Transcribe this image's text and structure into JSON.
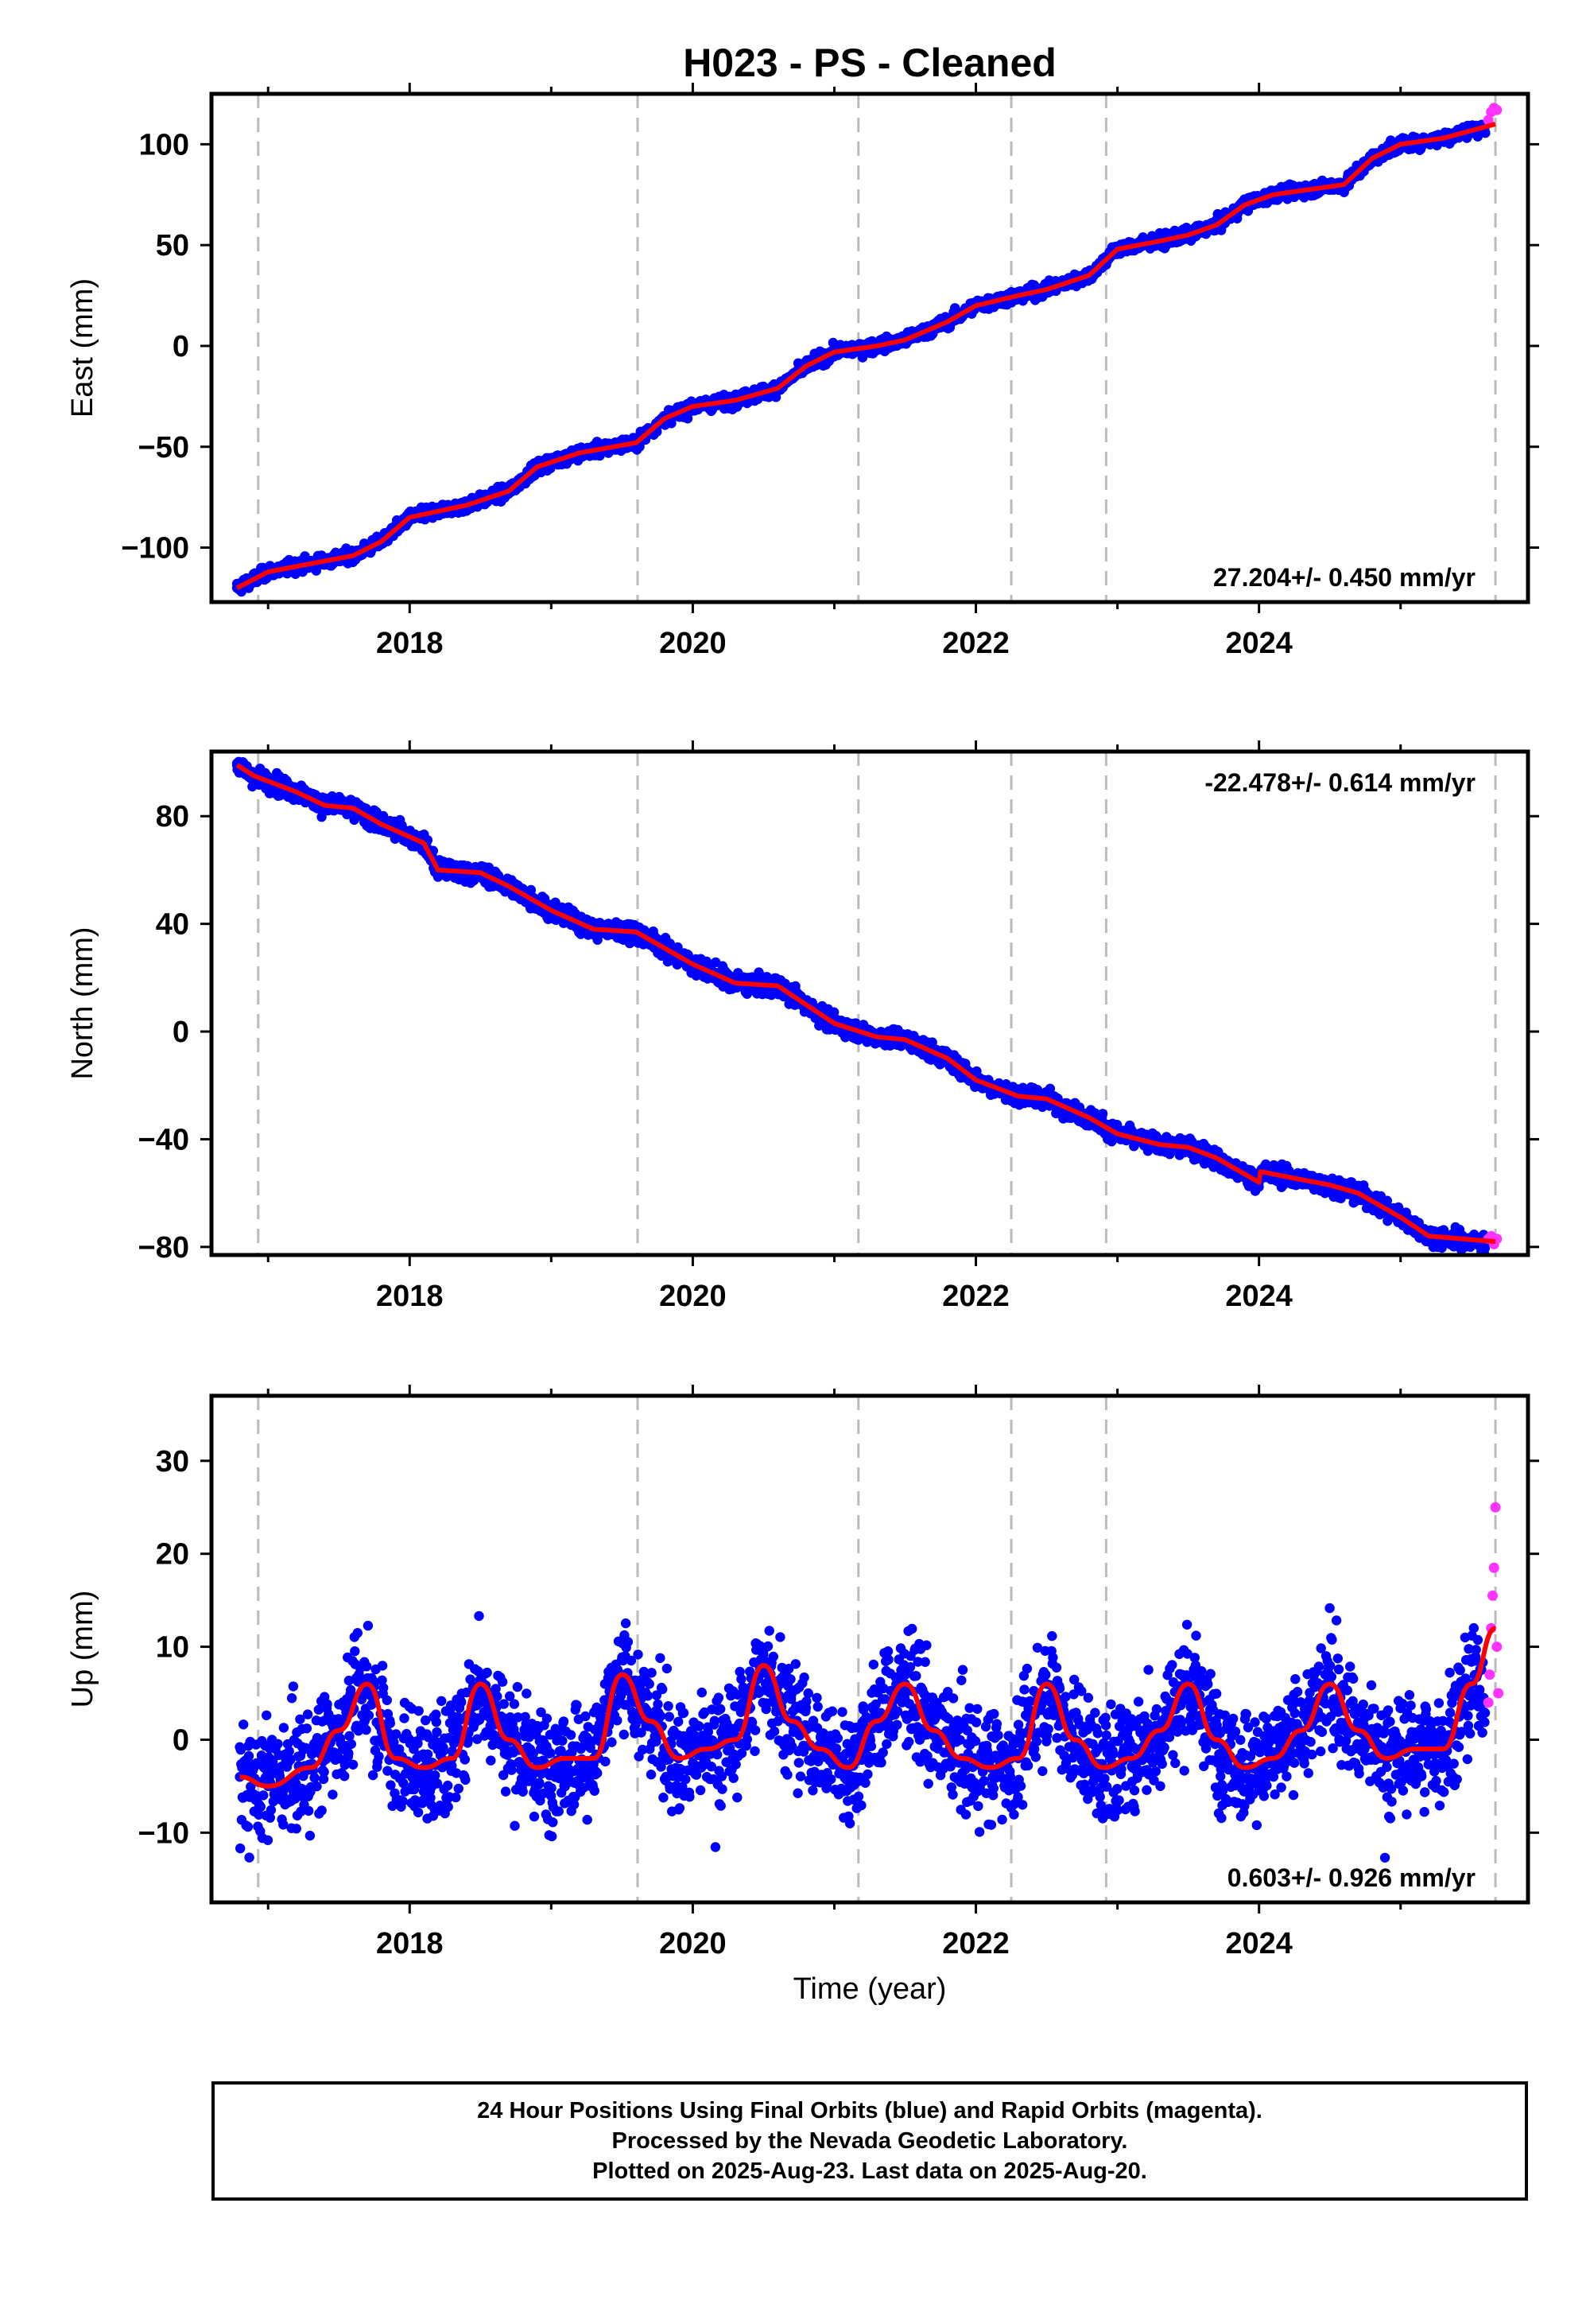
{
  "title": "H023  - PS - Cleaned",
  "x_axis_label": "Time (year)",
  "caption": [
    "24 Hour Positions Using Final Orbits (blue) and Rapid Orbits (magenta).",
    "Processed by the Nevada Geodetic Laboratory.",
    "Plotted on 2025-Aug-23. Last data on 2025-Aug-20."
  ],
  "colors": {
    "final_orbits": "#0000ff",
    "rapid_orbits": "#ff33ff",
    "model_fit": "#ff0000",
    "event_lines": "#bbbbbb"
  },
  "chart_data": [
    {
      "type": "scatter",
      "component": "east",
      "ylabel": "East (mm)",
      "xlim": [
        2016.6,
        2025.9
      ],
      "ylim": [
        -127,
        125
      ],
      "xticks": [
        2018,
        2020,
        2022,
        2024
      ],
      "yticks": [
        -100,
        -50,
        0,
        50,
        100
      ],
      "rate_label": "27.204+/- 0.450 mm/yr",
      "rate_position": "bottom-right",
      "event_lines_x": [
        2016.93,
        2019.61,
        2021.17,
        2022.25,
        2022.92,
        2025.67
      ],
      "series": [
        {
          "name": "Final Orbits (blue)",
          "x": [
            2016.78,
            2017.0,
            2017.3,
            2017.6,
            2017.8,
            2018.0,
            2018.4,
            2018.7,
            2018.9,
            2019.2,
            2019.6,
            2019.8,
            2020.0,
            2020.3,
            2020.6,
            2020.8,
            2021.0,
            2021.3,
            2021.5,
            2021.8,
            2022.0,
            2022.3,
            2022.5,
            2022.8,
            2023.0,
            2023.3,
            2023.5,
            2023.7,
            2023.9,
            2024.1,
            2024.3,
            2024.6,
            2024.8,
            2025.0,
            2025.3,
            2025.55
          ],
          "y": [
            -120,
            -112,
            -108,
            -104,
            -97,
            -85,
            -79,
            -72,
            -60,
            -53,
            -48,
            -36,
            -30,
            -27,
            -21,
            -10,
            -3,
            0,
            3,
            12,
            20,
            25,
            28,
            35,
            48,
            52,
            55,
            60,
            70,
            75,
            77,
            80,
            93,
            100,
            103,
            108
          ]
        },
        {
          "name": "Rapid Orbits (magenta)",
          "x": [
            2025.62,
            2025.64,
            2025.66,
            2025.68
          ],
          "y": [
            112,
            116,
            118,
            117
          ]
        },
        {
          "name": "Model fit",
          "type": "line",
          "x": [
            2016.78,
            2017.0,
            2017.3,
            2017.6,
            2017.8,
            2018.0,
            2018.4,
            2018.7,
            2018.9,
            2019.2,
            2019.6,
            2019.8,
            2020.0,
            2020.3,
            2020.6,
            2020.8,
            2021.0,
            2021.3,
            2021.5,
            2021.8,
            2022.0,
            2022.3,
            2022.5,
            2022.8,
            2023.0,
            2023.3,
            2023.5,
            2023.7,
            2023.9,
            2024.1,
            2024.3,
            2024.6,
            2024.8,
            2025.0,
            2025.3,
            2025.67
          ],
          "y": [
            -120,
            -112,
            -108,
            -104,
            -97,
            -85,
            -79,
            -72,
            -60,
            -53,
            -48,
            -36,
            -30,
            -27,
            -21,
            -10,
            -3,
            0,
            3,
            12,
            20,
            25,
            28,
            35,
            48,
            52,
            55,
            60,
            70,
            75,
            77,
            80,
            93,
            100,
            103,
            110
          ]
        }
      ]
    },
    {
      "type": "scatter",
      "component": "north",
      "ylabel": "North (mm)",
      "xlim": [
        2016.6,
        2025.9
      ],
      "ylim": [
        -83,
        104
      ],
      "xticks": [
        2018,
        2020,
        2022,
        2024
      ],
      "yticks": [
        -80,
        -40,
        0,
        40,
        80
      ],
      "rate_label": "-22.478+/- 0.614 mm/yr",
      "rate_position": "top-right",
      "event_lines_x": [
        2016.93,
        2019.61,
        2021.17,
        2022.25,
        2022.92,
        2025.67
      ],
      "series": [
        {
          "name": "Final Orbits (blue)",
          "x": [
            2016.78,
            2016.9,
            2017.2,
            2017.4,
            2017.6,
            2017.8,
            2018.1,
            2018.2,
            2018.5,
            2018.7,
            2019.0,
            2019.3,
            2019.6,
            2019.8,
            2020.0,
            2020.3,
            2020.6,
            2020.8,
            2021.0,
            2021.3,
            2021.5,
            2021.8,
            2022.0,
            2022.3,
            2022.5,
            2022.8,
            2023.0,
            2023.3,
            2023.5,
            2023.7,
            2024.0,
            2024.01,
            2024.3,
            2024.5,
            2024.7,
            2025.0,
            2025.2,
            2025.5
          ],
          "y": [
            99,
            95,
            89,
            84,
            83,
            77,
            70,
            60,
            59,
            54,
            45,
            38,
            37,
            31,
            25,
            18,
            17,
            10,
            3,
            -2,
            -3,
            -10,
            -18,
            -24,
            -25,
            -32,
            -38,
            -42,
            -43,
            -47,
            -56,
            -52,
            -55,
            -57,
            -60,
            -69,
            -76,
            -78
          ]
        },
        {
          "name": "Rapid Orbits (magenta)",
          "x": [
            2025.62,
            2025.64,
            2025.66,
            2025.68
          ],
          "y": [
            -77,
            -76,
            -79,
            -77
          ]
        },
        {
          "name": "Model fit",
          "type": "line",
          "x": [
            2016.78,
            2016.9,
            2017.2,
            2017.4,
            2017.6,
            2017.8,
            2018.1,
            2018.2,
            2018.5,
            2018.7,
            2019.0,
            2019.3,
            2019.6,
            2019.8,
            2020.0,
            2020.3,
            2020.6,
            2020.8,
            2021.0,
            2021.3,
            2021.5,
            2021.8,
            2022.0,
            2022.3,
            2022.5,
            2022.8,
            2023.0,
            2023.3,
            2023.5,
            2023.7,
            2024.0,
            2024.01,
            2024.3,
            2024.5,
            2024.7,
            2025.0,
            2025.2,
            2025.67
          ],
          "y": [
            99,
            95,
            89,
            84,
            83,
            77,
            70,
            60,
            59,
            54,
            45,
            38,
            37,
            31,
            25,
            18,
            17,
            10,
            3,
            -2,
            -3,
            -10,
            -18,
            -24,
            -25,
            -32,
            -38,
            -42,
            -43,
            -47,
            -56,
            -52,
            -55,
            -57,
            -60,
            -69,
            -76,
            -78
          ]
        }
      ]
    },
    {
      "type": "scatter",
      "component": "up",
      "ylabel": "Up (mm)",
      "xlabel": "Time (year)",
      "xlim": [
        2016.6,
        2025.9
      ],
      "ylim": [
        -17.5,
        37
      ],
      "xticks": [
        2018,
        2020,
        2022,
        2024
      ],
      "yticks": [
        -10,
        0,
        10,
        20,
        30
      ],
      "rate_label": "0.603+/- 0.926 mm/yr",
      "rate_position": "bottom-right",
      "event_lines_x": [
        2016.93,
        2019.61,
        2021.17,
        2022.25,
        2022.92,
        2025.67
      ],
      "series": [
        {
          "name": "Final Orbits (blue)",
          "x": [
            2016.8,
            2017.0,
            2017.3,
            2017.5,
            2017.7,
            2017.9,
            2018.1,
            2018.3,
            2018.5,
            2018.7,
            2018.9,
            2019.1,
            2019.3,
            2019.5,
            2019.7,
            2019.9,
            2020.1,
            2020.3,
            2020.5,
            2020.7,
            2020.9,
            2021.1,
            2021.3,
            2021.5,
            2021.7,
            2021.9,
            2022.1,
            2022.3,
            2022.5,
            2022.7,
            2022.9,
            2023.1,
            2023.3,
            2023.5,
            2023.7,
            2023.9,
            2024.1,
            2024.3,
            2024.5,
            2024.7,
            2024.9,
            2025.1,
            2025.3,
            2025.5
          ],
          "y": [
            -4,
            -5,
            -3,
            1,
            6,
            -2,
            -3,
            -2,
            6,
            0,
            -3,
            -2,
            -2,
            7,
            2,
            -2,
            -1,
            0,
            8,
            2,
            -1,
            -3,
            2,
            6,
            1,
            -2,
            -3,
            -2,
            6,
            0,
            -3,
            -2,
            1,
            6,
            0,
            -3,
            -2,
            1,
            6,
            1,
            -2,
            -1,
            -1,
            6
          ]
        },
        {
          "name": "Rapid Orbits (magenta)",
          "x": [
            2025.62,
            2025.63,
            2025.64,
            2025.65,
            2025.66,
            2025.67,
            2025.68,
            2025.69
          ],
          "y": [
            4,
            7,
            12,
            15.5,
            18.5,
            25,
            10,
            5
          ]
        },
        {
          "name": "Model fit",
          "type": "line",
          "x": [
            2016.8,
            2017.0,
            2017.3,
            2017.5,
            2017.7,
            2017.9,
            2018.1,
            2018.3,
            2018.5,
            2018.7,
            2018.9,
            2019.1,
            2019.3,
            2019.5,
            2019.7,
            2019.9,
            2020.1,
            2020.3,
            2020.5,
            2020.7,
            2020.9,
            2021.1,
            2021.3,
            2021.5,
            2021.7,
            2021.9,
            2022.1,
            2022.3,
            2022.5,
            2022.7,
            2022.9,
            2023.1,
            2023.3,
            2023.5,
            2023.7,
            2023.9,
            2024.1,
            2024.3,
            2024.5,
            2024.7,
            2024.9,
            2025.1,
            2025.3,
            2025.5,
            2025.67
          ],
          "y": [
            -4,
            -5,
            -3,
            1,
            6,
            -2,
            -3,
            -2,
            6,
            0,
            -3,
            -2,
            -2,
            7,
            2,
            -2,
            -1,
            0,
            8,
            2,
            -1,
            -3,
            2,
            6,
            1,
            -2,
            -3,
            -2,
            6,
            0,
            -3,
            -2,
            1,
            6,
            0,
            -3,
            -2,
            1,
            6,
            1,
            -2,
            -1,
            -1,
            6,
            12
          ]
        }
      ]
    }
  ]
}
